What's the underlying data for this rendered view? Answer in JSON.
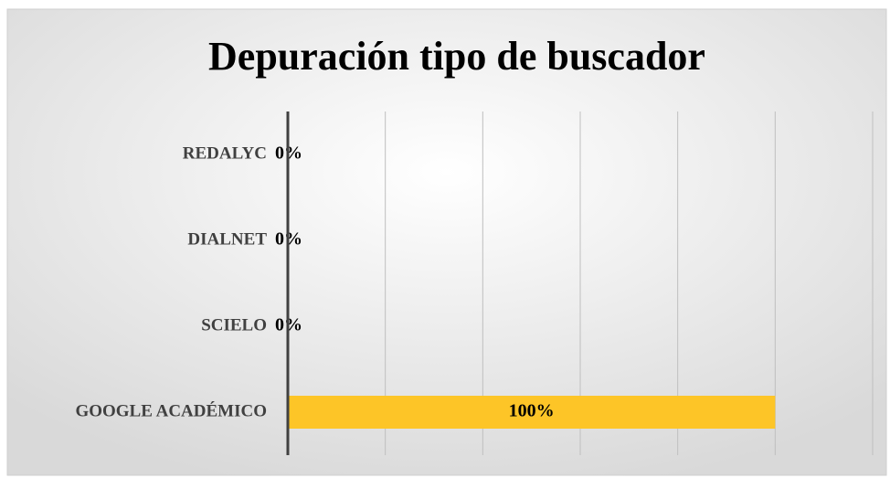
{
  "chart_data": {
    "type": "barh",
    "title": "Depuración tipo de buscador",
    "categories": [
      "REDALYC",
      "DIALNET",
      "SCIELO",
      "GOOGLE ACADÉMICO"
    ],
    "values": [
      0,
      0,
      0,
      100
    ],
    "value_labels": [
      "0%",
      "0%",
      "0%",
      "100%"
    ],
    "color": "#fdc527",
    "xlim": [
      0,
      120
    ],
    "xticks": [
      0,
      20,
      40,
      60,
      80,
      100,
      120
    ],
    "grid": true
  }
}
